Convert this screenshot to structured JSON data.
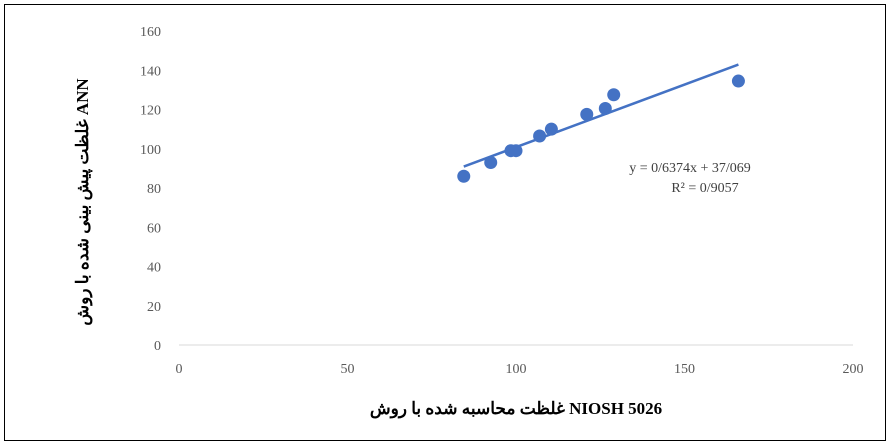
{
  "chart_data": {
    "type": "scatter",
    "xlabel": "غلظت محاسبه شده با روش NIOSH 5026",
    "ylabel": "غلظت پیش بینی شده با روش ANN",
    "xlim": [
      0,
      200
    ],
    "ylim": [
      0,
      160
    ],
    "x_ticks": [
      "0",
      "50",
      "100",
      "150",
      "200"
    ],
    "y_ticks": [
      "0",
      "20",
      "40",
      "60",
      "80",
      "100",
      "120",
      "140",
      "160"
    ],
    "grid": false,
    "legend": "none",
    "points": [
      {
        "x": 84.5,
        "y": 86
      },
      {
        "x": 92.5,
        "y": 93
      },
      {
        "x": 98.5,
        "y": 99
      },
      {
        "x": 100.0,
        "y": 99
      },
      {
        "x": 107.0,
        "y": 106.5
      },
      {
        "x": 110.5,
        "y": 110
      },
      {
        "x": 121.0,
        "y": 117.5
      },
      {
        "x": 126.5,
        "y": 120.5
      },
      {
        "x": 129.0,
        "y": 127.5
      },
      {
        "x": 166.0,
        "y": 134.5
      }
    ],
    "trendline": {
      "slope": 0.6374,
      "intercept": 37.069,
      "x_range": [
        84.5,
        166.0
      ],
      "equation_label": "y = 0/6374x + 37/069",
      "r2_label": "R² = 0/9057"
    },
    "colors": {
      "marker": "#4472C4",
      "trendline": "#4472C4",
      "tick_text": "#595959",
      "axis_line": "#D9D9D9"
    }
  }
}
